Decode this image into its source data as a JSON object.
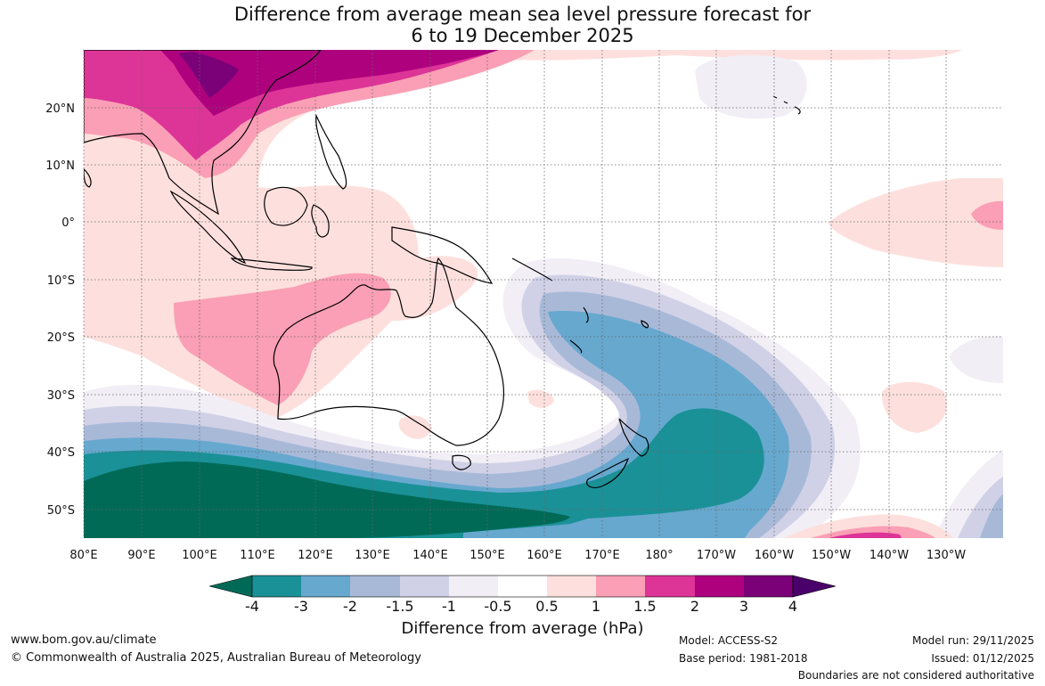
{
  "title": {
    "line1": "Difference from average mean sea level pressure forecast for",
    "line2": "6 to 19 December 2025"
  },
  "lon_labels": [
    "80°E",
    "90°E",
    "100°E",
    "110°E",
    "120°E",
    "130°E",
    "140°E",
    "150°E",
    "160°E",
    "170°E",
    "180°",
    "170°W",
    "160°W",
    "150°W",
    "140°W",
    "130°W"
  ],
  "lat_labels": [
    "20°N",
    "10°N",
    "0°",
    "10°S",
    "20°S",
    "30°S",
    "40°S",
    "50°S"
  ],
  "colorbar": {
    "label": "Difference from average (hPa)",
    "ticks": [
      "-4",
      "-3",
      "-2",
      "-1.5",
      "-1",
      "-0.5",
      "0.5",
      "1",
      "1.5",
      "2",
      "3",
      "4"
    ],
    "colors": [
      "#006a57",
      "#1a9197",
      "#67a8cf",
      "#a8b9d8",
      "#d0d1e6",
      "#f1eef6",
      "#ffffff",
      "#fde0dd",
      "#fa9fb5",
      "#dd3497",
      "#ae017e",
      "#7a0177",
      "#49006a"
    ]
  },
  "footer": {
    "website": "www.bom.gov.au/climate",
    "copyright": "© Commonwealth of Australia 2025, Australian Bureau of Meteorology",
    "model": "Model: ACCESS-S2",
    "base_period": "Base period: 1981-2018",
    "model_run": "Model run: 29/11/2025",
    "issued": "Issued: 01/12/2025",
    "disclaimer": "Boundaries are not considered authoritative"
  }
}
